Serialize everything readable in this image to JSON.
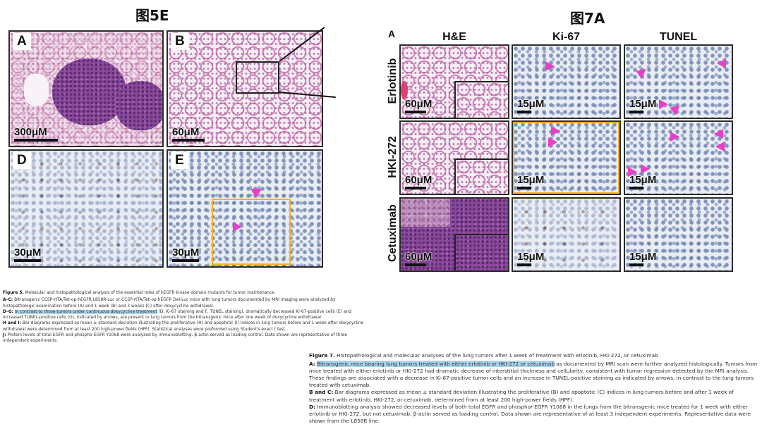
{
  "titles": {
    "fig5e": "图5E",
    "fig7a": "图7A"
  },
  "fig5": {
    "panels": [
      {
        "letter": "A",
        "scale": "300μM"
      },
      {
        "letter": "B",
        "scale": "60μM"
      },
      {
        "letter": "D",
        "scale": "30μM"
      },
      {
        "letter": "E",
        "scale": "30μM"
      }
    ],
    "caption": {
      "head_label": "Figure 5.",
      "head_text": "Molecular and histopathological analysis of the essential roles of hEGFR kinase domain mutants for tumor maintenance",
      "ac_label": "A–C:",
      "ac_text": "Bitransgenic CCSP-rtTA/Tet-op-hEGFR L858R-Luc or CCSP-rtTA/Tet-op-hEGFR Del-Luc mice with lung tumors documented by MRI imaging were analyzed by histopathologic examination before (A) and 1 week (B) and 3 weeks (C) after doxycycline withdrawal.",
      "dg_label": "D–G:",
      "dg_highlight": "In contrast to those tumors under continuous doxycycline treatment",
      "dg_text": "(D, Ki-67 staining and F, TUNEL staining), dramatically decreased Ki-67-positive cells (E) and increased TUNEL-positive cells (G), indicated by arrows, are present in lung tumors from the bitransgenic mice after one week of doxycycline withdrawal.",
      "hi_label": "H and I:",
      "hi_text": "Bar diagrams expressed as mean ± standard deviation illustrating the proliferative (H) and apoptotic (I) indices in lung tumors before and 1 week after doxycycline withdrawal were determined from at least 200 high-power fields (HPF). Statistical analyses were preformed using Student's exact t test.",
      "j_label": "J:",
      "j_text": "Protein levels of total EGFR and phospho-EGFR Y1068 were analyzed by immunoblotting. β-actin served as loading control. Data shown are representative of three independent experiments."
    }
  },
  "fig7": {
    "letter": "A",
    "columns": [
      "H&E",
      "Ki-67",
      "TUNEL"
    ],
    "rows": [
      "Erlotinib",
      "HKI-272",
      "Cetuximab"
    ],
    "scales": [
      [
        "60μM",
        "15μM",
        "15μM"
      ],
      [
        "60μM",
        "15μM",
        "15μM"
      ],
      [
        "60μM",
        "15μM",
        "15μM"
      ]
    ],
    "caption": {
      "head_label": "Figure 7.",
      "head_text": "Histopathological and molecular analyses of the lung tumors after 1 week of treatment with erlotinib, HKI-272, or cetuximab",
      "a_label": "A:",
      "a_highlight": "Bitransgenic mice bearing lung tumors treated with either erlotinib or HKI-272 or cetuximab",
      "a_text": "as documented by MRI scan were further analyzed histologically. Tumors from mice treated with either erlotinib or HKI-272 had dramatic decrease of interstitial thickness and cellularity, consistent with tumor regression detected by the MRI analysis. These findings are associated with a decrease in Ki-67-positive tumor cells and an increase in TUNEL-positive staining as indicated by arrows, in contrast to the lung tumors treated with cetuximab.",
      "bc_label": "B and C:",
      "bc_text": "Bar diagrams expressed as mean ± standard deviation illustrating the proliferative (B) and apoptotic (C) indices in lung tumors before and after 1 week of treatment with erlotinib, HKI-272, or cetuximab, determined from at least 200 high-power fields (HPF).",
      "d_label": "D:",
      "d_text": "Immunoblotting analysis showed decreased levels of both total EGFR and phosphor-EGFR Y1068 in the lungs from the bitransgenic mice treated for 1 week with either erlotinib or HKI-272, but not cetuximab. β-actin served as loading control. Data shown are representative of at least 3 independent experiments. Representative data were shown from the L858R line."
    }
  },
  "colors": {
    "highlight": "#a9d3ef",
    "roi": "#f4b321",
    "arrow": "#e83fc8"
  }
}
